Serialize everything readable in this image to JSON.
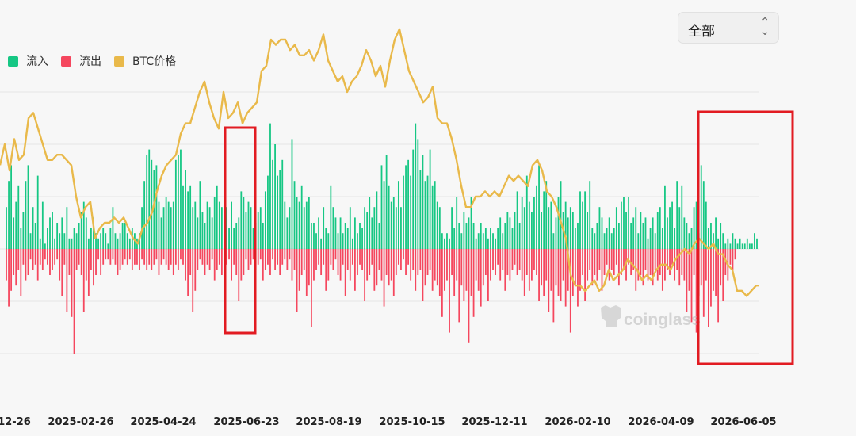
{
  "filter": {
    "value": "全部",
    "options": [
      "全部"
    ]
  },
  "legend": [
    {
      "key": "inflow",
      "label": "流入",
      "color": "#16c784"
    },
    {
      "key": "outflow",
      "label": "流出",
      "color": "#f5475e"
    },
    {
      "key": "price",
      "label": "BTC价格",
      "color": "#e9b94a"
    }
  ],
  "watermark": "coinglass",
  "chart_data": {
    "type": "bar",
    "title": "",
    "xlabel": "",
    "ylabel": "",
    "grid": true,
    "legend_position": "top-left",
    "x_tick_labels": [
      "12-26",
      "2025-02-26",
      "2025-04-24",
      "2025-06-23",
      "2025-08-19",
      "2025-10-15",
      "2025-12-11",
      "2026-02-10",
      "2026-04-09",
      "2026-06-05"
    ],
    "flow_scale": [
      -3,
      3
    ],
    "price_scale": [
      -2,
      5
    ],
    "series": [
      {
        "name": "流入",
        "color": "#16c784",
        "values": [
          0.8,
          1.3,
          1.6,
          0.6,
          0.9,
          1.2,
          0.4,
          0.7,
          1.3,
          1.6,
          0.3,
          0.8,
          0.5,
          1.4,
          0.2,
          0.9,
          0.1,
          0.4,
          0.6,
          0.7,
          0.2,
          0.5,
          0.3,
          0.6,
          0.3,
          0.8,
          0.2,
          0.2,
          0.4,
          0.3,
          0.5,
          0.7,
          0.9,
          0.6,
          0.2,
          0.4,
          0.6,
          0.3,
          0.2,
          0.3,
          0.4,
          0.3,
          0.1,
          0.4,
          0.8,
          0.3,
          0.2,
          0.3,
          0.5,
          0.5,
          0.3,
          0.2,
          0.4,
          0.3,
          0.2,
          0.3,
          0.8,
          1.3,
          1.8,
          1.9,
          1.7,
          1.5,
          1.6,
          0.9,
          0.6,
          0.8,
          1.0,
          0.9,
          0.8,
          0.9,
          1.7,
          1.8,
          1.9,
          1.2,
          1.5,
          1.1,
          1.2,
          0.8,
          0.9,
          0.6,
          1.3,
          0.7,
          0.5,
          0.9,
          0.8,
          0.6,
          1.0,
          1.2,
          0.9,
          0.8,
          0.7,
          0.8,
          0.4,
          0.9,
          0.4,
          0.5,
          0.6,
          1.1,
          1.0,
          0.7,
          0.9,
          0.8,
          0.4,
          0.5,
          0.7,
          0.8,
          0.5,
          1.1,
          1.4,
          2.4,
          1.7,
          2.0,
          1.4,
          1.5,
          1.7,
          0.9,
          0.6,
          0.8,
          2.1,
          1.3,
          1.0,
          0.9,
          1.2,
          0.8,
          0.9,
          1.0,
          0.5,
          0.5,
          0.3,
          0.6,
          0.2,
          0.8,
          0.4,
          0.3,
          1.2,
          0.8,
          0.6,
          0.3,
          0.6,
          0.3,
          0.5,
          0.4,
          0.8,
          0.2,
          0.6,
          0.3,
          0.5,
          0.4,
          0.8,
          0.7,
          1.0,
          0.6,
          0.8,
          1.1,
          0.5,
          1.6,
          1.3,
          1.8,
          1.2,
          0.9,
          1.0,
          0.8,
          1.3,
          0.8,
          1.4,
          1.6,
          1.7,
          1.4,
          1.9,
          2.4,
          2.1,
          1.5,
          1.8,
          1.3,
          1.4,
          1.9,
          1.2,
          1.3,
          0.9,
          0.8,
          0.3,
          0.2,
          0.3,
          0.2,
          0.8,
          0.4,
          1.0,
          0.5,
          0.3,
          0.7,
          0.5,
          0.6,
          1.0,
          0.5,
          0.2,
          0.3,
          0.5,
          0.3,
          0.4,
          0.2,
          0.4,
          0.3,
          0.2,
          0.4,
          0.6,
          0.3,
          0.5,
          0.7,
          0.6,
          0.4,
          0.7,
          1.1,
          0.5,
          1.0,
          0.8,
          1.4,
          0.9,
          0.7,
          1.0,
          1.2,
          1.6,
          0.7,
          1.1,
          1.3,
          0.8,
          0.9,
          0.3,
          0.6,
          1.0,
          1.3,
          0.7,
          0.9,
          0.6,
          0.8,
          0.7,
          0.4,
          0.5,
          1.1,
          0.9,
          1.1,
          0.7,
          1.3,
          0.4,
          0.3,
          0.5,
          0.8,
          0.6,
          0.3,
          0.4,
          0.6,
          0.3,
          0.4,
          0.8,
          0.5,
          0.9,
          1.0,
          0.7,
          1.0,
          0.5,
          0.6,
          0.8,
          0.3,
          0.7,
          0.5,
          0.6,
          0.2,
          0.4,
          0.6,
          0.3,
          0.7,
          0.8,
          0.4,
          1.2,
          0.6,
          0.8,
          0.9,
          0.4,
          1.3,
          0.8,
          1.2,
          0.6,
          0.5,
          0.3,
          0.4,
          0.8,
          0.9,
          0.3,
          1.6,
          1.3,
          0.9,
          0.4,
          0.5,
          0.3,
          0.6,
          0.2,
          0.5,
          0.3,
          0.1,
          0.2,
          0.1,
          0.3,
          0.2,
          0.1,
          0.2,
          0.1,
          0.1,
          0.2,
          0.1,
          0.1,
          0.3,
          0.2
        ]
      },
      {
        "name": "流出",
        "color": "#f5475e",
        "values": [
          -0.6,
          -1.1,
          -0.8,
          -0.5,
          -0.7,
          -0.4,
          -0.9,
          -0.3,
          -0.6,
          -0.5,
          -0.2,
          -0.4,
          -0.3,
          -0.6,
          -0.3,
          -0.4,
          -0.2,
          -0.3,
          -0.5,
          -0.4,
          -0.3,
          -0.2,
          -0.6,
          -0.9,
          -0.3,
          -1.2,
          -0.5,
          -1.3,
          -2.0,
          -0.4,
          -0.3,
          -0.5,
          -1.2,
          -0.6,
          -0.9,
          -0.4,
          -0.7,
          -0.5,
          -0.2,
          -0.5,
          -0.3,
          -0.2,
          -0.2,
          -0.3,
          -0.2,
          -0.3,
          -0.5,
          -0.4,
          -0.3,
          -0.2,
          -0.3,
          -0.2,
          -0.4,
          -0.3,
          -0.3,
          -0.4,
          -0.2,
          -0.3,
          -0.4,
          -0.3,
          -0.4,
          -0.3,
          -0.2,
          -0.5,
          -0.3,
          -0.2,
          -0.3,
          -0.4,
          -0.3,
          -0.5,
          -0.3,
          -0.4,
          -0.2,
          -0.3,
          -0.6,
          -0.9,
          -0.5,
          -1.2,
          -0.8,
          -0.4,
          -0.2,
          -0.3,
          -0.5,
          -0.3,
          -0.4,
          -0.2,
          -0.6,
          -0.4,
          -0.3,
          -0.5,
          -0.4,
          -0.3,
          -0.2,
          -0.6,
          -0.3,
          -0.5,
          -1.0,
          -0.6,
          -0.5,
          -0.2,
          -0.4,
          -0.3,
          -0.2,
          -0.4,
          -0.3,
          -0.2,
          -0.6,
          -0.4,
          -0.3,
          -0.5,
          -0.2,
          -0.4,
          -0.3,
          -0.5,
          -0.3,
          -0.2,
          -0.4,
          -0.2,
          -0.6,
          -0.4,
          -1.2,
          -0.8,
          -0.5,
          -0.4,
          -0.9,
          -0.7,
          -1.5,
          -0.6,
          -0.4,
          -0.3,
          -0.5,
          -0.3,
          -0.8,
          -0.6,
          -0.3,
          -0.4,
          -0.2,
          -0.5,
          -0.6,
          -0.3,
          -0.9,
          -0.4,
          -0.6,
          -0.3,
          -0.8,
          -0.5,
          -0.3,
          -0.4,
          -1.0,
          -0.6,
          -0.5,
          -0.3,
          -0.8,
          -0.7,
          -0.4,
          -0.6,
          -1.1,
          -0.5,
          -0.7,
          -0.6,
          -0.9,
          -0.5,
          -0.3,
          -0.4,
          -0.2,
          -0.5,
          -0.3,
          -0.6,
          -0.4,
          -0.8,
          -0.5,
          -0.4,
          -1.0,
          -0.7,
          -0.5,
          -0.4,
          -0.8,
          -0.6,
          -0.7,
          -0.9,
          -1.3,
          -0.8,
          -0.6,
          -1.6,
          -0.5,
          -0.9,
          -0.6,
          -1.4,
          -0.7,
          -1.0,
          -0.8,
          -1.8,
          -0.9,
          -1.3,
          -0.6,
          -0.8,
          -1.1,
          -0.7,
          -0.5,
          -1.0,
          -0.6,
          -0.4,
          -0.5,
          -0.3,
          -0.6,
          -0.4,
          -0.8,
          -0.5,
          -0.6,
          -0.4,
          -0.3,
          -0.5,
          -0.4,
          -0.6,
          -0.9,
          -0.5,
          -0.8,
          -0.6,
          -0.4,
          -0.5,
          -1.0,
          -0.7,
          -0.9,
          -0.6,
          -1.2,
          -0.8,
          -1.4,
          -0.7,
          -0.9,
          -1.0,
          -0.6,
          -1.1,
          -0.8,
          -1.6,
          -0.9,
          -0.7,
          -1.1,
          -0.8,
          -0.5,
          -1.0,
          -0.6,
          -0.4,
          -0.7,
          -0.5,
          -0.6,
          -0.4,
          -0.8,
          -0.5,
          -0.3,
          -0.6,
          -0.4,
          -0.5,
          -0.3,
          -0.7,
          -0.5,
          -0.4,
          -0.6,
          -0.3,
          -0.5,
          -0.4,
          -0.8,
          -0.6,
          -0.5,
          -0.7,
          -0.4,
          -0.6,
          -0.5,
          -0.7,
          -0.4,
          -0.6,
          -0.5,
          -0.8,
          -0.6,
          -0.4,
          -0.5,
          -0.3,
          -0.6,
          -0.4,
          -0.7,
          -0.5,
          -0.6,
          -1.2,
          -0.8,
          -1.4,
          -0.5,
          -1.6,
          -0.9,
          -0.7,
          -1.3,
          -0.6,
          -1.5,
          -1.1,
          -0.8,
          -0.9,
          -1.4,
          -0.7,
          -1.0,
          -0.5,
          -0.6,
          -0.3,
          -0.4,
          -0.2
        ]
      },
      {
        "name": "BTC价格",
        "color": "#e9b94a",
        "points": [
          [
            0,
            1.6
          ],
          [
            6,
            2.0
          ],
          [
            12,
            1.5
          ],
          [
            18,
            2.1
          ],
          [
            24,
            1.7
          ],
          [
            30,
            1.8
          ],
          [
            36,
            2.5
          ],
          [
            42,
            2.6
          ],
          [
            48,
            2.3
          ],
          [
            54,
            2.0
          ],
          [
            60,
            1.7
          ],
          [
            66,
            1.7
          ],
          [
            72,
            1.8
          ],
          [
            78,
            1.8
          ],
          [
            84,
            1.7
          ],
          [
            90,
            1.6
          ],
          [
            96,
            1.0
          ],
          [
            102,
            0.6
          ],
          [
            108,
            0.8
          ],
          [
            114,
            0.9
          ],
          [
            120,
            0.2
          ],
          [
            126,
            0.4
          ],
          [
            132,
            0.5
          ],
          [
            138,
            0.5
          ],
          [
            144,
            0.6
          ],
          [
            150,
            0.5
          ],
          [
            156,
            0.6
          ],
          [
            162,
            0.4
          ],
          [
            168,
            0.2
          ],
          [
            174,
            0.1
          ],
          [
            180,
            0.4
          ],
          [
            186,
            0.5
          ],
          [
            192,
            0.7
          ],
          [
            198,
            1.1
          ],
          [
            204,
            1.4
          ],
          [
            210,
            1.6
          ],
          [
            216,
            1.7
          ],
          [
            222,
            1.8
          ],
          [
            228,
            2.2
          ],
          [
            234,
            2.4
          ],
          [
            240,
            2.4
          ],
          [
            246,
            2.7
          ],
          [
            252,
            3.0
          ],
          [
            258,
            3.2
          ],
          [
            264,
            2.8
          ],
          [
            270,
            2.5
          ],
          [
            276,
            2.3
          ],
          [
            282,
            3.0
          ],
          [
            288,
            2.5
          ],
          [
            294,
            2.6
          ],
          [
            300,
            2.8
          ],
          [
            306,
            2.4
          ],
          [
            312,
            2.6
          ],
          [
            318,
            2.7
          ],
          [
            324,
            2.8
          ],
          [
            330,
            3.4
          ],
          [
            336,
            3.5
          ],
          [
            342,
            4.0
          ],
          [
            348,
            3.9
          ],
          [
            354,
            4.0
          ],
          [
            360,
            4.0
          ],
          [
            366,
            3.8
          ],
          [
            372,
            3.9
          ],
          [
            378,
            3.7
          ],
          [
            384,
            3.7
          ],
          [
            390,
            3.8
          ],
          [
            396,
            3.6
          ],
          [
            402,
            3.8
          ],
          [
            408,
            4.1
          ],
          [
            414,
            3.6
          ],
          [
            420,
            3.4
          ],
          [
            426,
            3.2
          ],
          [
            432,
            3.3
          ],
          [
            438,
            3.0
          ],
          [
            444,
            3.2
          ],
          [
            450,
            3.3
          ],
          [
            456,
            3.5
          ],
          [
            462,
            3.8
          ],
          [
            468,
            3.6
          ],
          [
            474,
            3.3
          ],
          [
            480,
            3.5
          ],
          [
            486,
            3.1
          ],
          [
            492,
            3.6
          ],
          [
            498,
            4.0
          ],
          [
            504,
            4.2
          ],
          [
            510,
            3.8
          ],
          [
            516,
            3.4
          ],
          [
            522,
            3.2
          ],
          [
            528,
            3.0
          ],
          [
            534,
            2.8
          ],
          [
            540,
            2.9
          ],
          [
            546,
            3.1
          ],
          [
            552,
            2.5
          ],
          [
            558,
            2.4
          ],
          [
            564,
            2.4
          ],
          [
            570,
            2.1
          ],
          [
            576,
            1.7
          ],
          [
            582,
            1.2
          ],
          [
            588,
            0.8
          ],
          [
            594,
            0.8
          ],
          [
            600,
            1.0
          ],
          [
            606,
            1.0
          ],
          [
            612,
            1.1
          ],
          [
            618,
            1.0
          ],
          [
            624,
            1.1
          ],
          [
            630,
            1.0
          ],
          [
            636,
            1.2
          ],
          [
            642,
            1.4
          ],
          [
            648,
            1.3
          ],
          [
            654,
            1.4
          ],
          [
            660,
            1.3
          ],
          [
            666,
            1.2
          ],
          [
            672,
            1.6
          ],
          [
            678,
            1.7
          ],
          [
            684,
            1.5
          ],
          [
            690,
            1.1
          ],
          [
            696,
            1.0
          ],
          [
            702,
            0.8
          ],
          [
            708,
            0.5
          ],
          [
            714,
            0.2
          ],
          [
            720,
            -0.5
          ],
          [
            726,
            -0.7
          ],
          [
            732,
            -0.7
          ],
          [
            738,
            -0.8
          ],
          [
            744,
            -0.7
          ],
          [
            750,
            -0.6
          ],
          [
            756,
            -0.8
          ],
          [
            762,
            -0.7
          ],
          [
            768,
            -0.4
          ],
          [
            774,
            -0.6
          ],
          [
            780,
            -0.5
          ],
          [
            786,
            -0.4
          ],
          [
            792,
            -0.2
          ],
          [
            798,
            -0.3
          ],
          [
            804,
            -0.4
          ],
          [
            810,
            -0.6
          ],
          [
            816,
            -0.5
          ],
          [
            822,
            -0.6
          ],
          [
            828,
            -0.4
          ],
          [
            834,
            -0.3
          ],
          [
            840,
            -0.3
          ],
          [
            846,
            -0.4
          ],
          [
            852,
            -0.2
          ],
          [
            858,
            -0.1
          ],
          [
            864,
            0.0
          ],
          [
            870,
            -0.1
          ],
          [
            876,
            0.1
          ],
          [
            882,
            0.2
          ],
          [
            888,
            0.1
          ],
          [
            894,
            0.0
          ],
          [
            900,
            0.1
          ],
          [
            906,
            -0.1
          ],
          [
            912,
            -0.1
          ],
          [
            918,
            -0.3
          ],
          [
            924,
            -0.4
          ],
          [
            930,
            -0.8
          ],
          [
            936,
            -0.8
          ],
          [
            942,
            -0.9
          ],
          [
            948,
            -0.8
          ],
          [
            954,
            -0.7
          ],
          [
            958,
            -0.7
          ]
        ]
      }
    ]
  }
}
